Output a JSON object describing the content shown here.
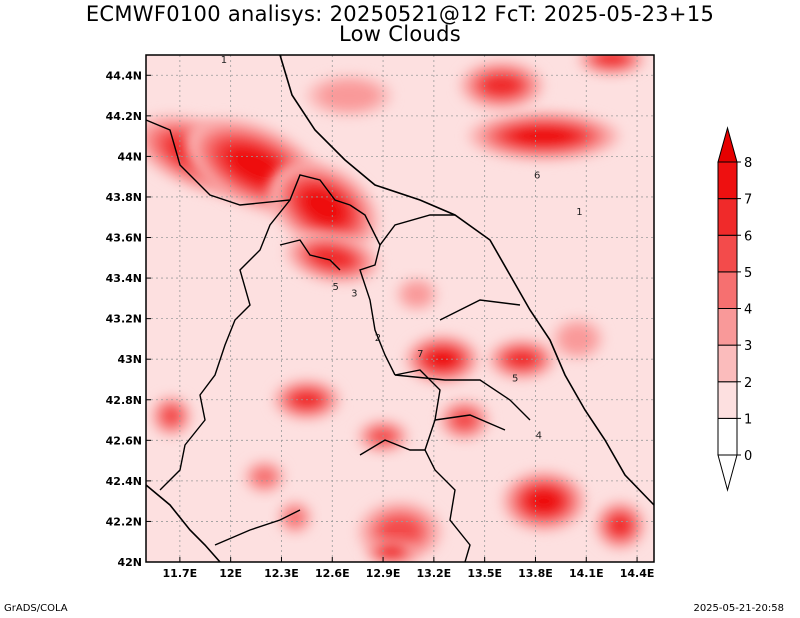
{
  "title_line1": "ECMWF0100 analisys: 20250521@12 FcT: 2025-05-23+15",
  "title_line2": "Low Clouds",
  "footer_left": "GrADS/COLA",
  "footer_right": "2025-05-21-20:58",
  "chart_data": {
    "type": "heatmap",
    "xlim": [
      11.5,
      14.5
    ],
    "ylim": [
      42.0,
      44.5
    ],
    "x_ticks": [
      11.7,
      12.0,
      12.3,
      12.6,
      12.9,
      13.2,
      13.5,
      13.8,
      14.1,
      14.4
    ],
    "x_tick_labels": [
      "11.7E",
      "12E",
      "12.3E",
      "12.6E",
      "12.9E",
      "13.2E",
      "13.5E",
      "13.8E",
      "14.1E",
      "14.4E"
    ],
    "y_ticks": [
      42.0,
      42.2,
      42.4,
      42.6,
      42.8,
      43.0,
      43.2,
      43.4,
      43.6,
      43.8,
      44.0,
      44.2,
      44.4
    ],
    "y_tick_labels": [
      "42N",
      "42.2N",
      "42.4N",
      "42.6N",
      "42.8N",
      "43N",
      "43.2N",
      "43.4N",
      "43.6N",
      "43.8N",
      "44N",
      "44.2N",
      "44.4N"
    ],
    "grid": true,
    "colorbar": {
      "levels": [
        0,
        1,
        2,
        3,
        4,
        5,
        6,
        7,
        8
      ],
      "labels": [
        "0",
        "1",
        "2",
        "3",
        "4",
        "5",
        "6",
        "7",
        "8"
      ],
      "colors": [
        "#ffffff",
        "#fde0e0",
        "#fbbcbc",
        "#f99999",
        "#f67070",
        "#f34b4b",
        "#f02a2a",
        "#ee1010",
        "#e60000"
      ],
      "placement": "right"
    },
    "contour_labels": [
      {
        "text": "1",
        "lon": 11.96,
        "lat": 44.46
      },
      {
        "text": "1",
        "lon": 14.06,
        "lat": 43.71
      },
      {
        "text": "6",
        "lon": 13.81,
        "lat": 43.89
      },
      {
        "text": "5",
        "lon": 12.62,
        "lat": 43.34
      },
      {
        "text": "3",
        "lon": 12.73,
        "lat": 43.31
      },
      {
        "text": "2",
        "lon": 12.87,
        "lat": 43.09
      },
      {
        "text": "7",
        "lon": 13.12,
        "lat": 43.01
      },
      {
        "text": "5",
        "lon": 13.68,
        "lat": 42.89
      },
      {
        "text": "4",
        "lon": 13.82,
        "lat": 42.61
      }
    ],
    "cloud_cells": [
      {
        "lon": 11.85,
        "lat": 44.0,
        "rx": 0.45,
        "ry": 0.17,
        "rot": 20,
        "level": 7
      },
      {
        "lon": 12.15,
        "lat": 43.95,
        "rx": 0.45,
        "ry": 0.2,
        "rot": 25,
        "level": 7
      },
      {
        "lon": 12.55,
        "lat": 43.75,
        "rx": 0.35,
        "ry": 0.2,
        "rot": 30,
        "level": 7
      },
      {
        "lon": 12.6,
        "lat": 43.5,
        "rx": 0.28,
        "ry": 0.12,
        "rot": 10,
        "level": 6
      },
      {
        "lon": 13.85,
        "lat": 44.1,
        "rx": 0.45,
        "ry": 0.12,
        "rot": 0,
        "level": 7
      },
      {
        "lon": 13.6,
        "lat": 44.35,
        "rx": 0.25,
        "ry": 0.12,
        "rot": 0,
        "level": 6
      },
      {
        "lon": 14.25,
        "lat": 44.48,
        "rx": 0.2,
        "ry": 0.08,
        "rot": 0,
        "level": 6
      },
      {
        "lon": 12.7,
        "lat": 44.3,
        "rx": 0.25,
        "ry": 0.1,
        "rot": 0,
        "level": 3
      },
      {
        "lon": 13.25,
        "lat": 43.0,
        "rx": 0.22,
        "ry": 0.12,
        "rot": 0,
        "level": 7
      },
      {
        "lon": 13.72,
        "lat": 43.0,
        "rx": 0.2,
        "ry": 0.1,
        "rot": 0,
        "level": 6
      },
      {
        "lon": 12.45,
        "lat": 42.8,
        "rx": 0.2,
        "ry": 0.1,
        "rot": 0,
        "level": 6
      },
      {
        "lon": 11.65,
        "lat": 42.72,
        "rx": 0.12,
        "ry": 0.1,
        "rot": 0,
        "level": 5
      },
      {
        "lon": 13.38,
        "lat": 42.7,
        "rx": 0.15,
        "ry": 0.1,
        "rot": 0,
        "level": 5
      },
      {
        "lon": 13.85,
        "lat": 42.3,
        "rx": 0.25,
        "ry": 0.15,
        "rot": 0,
        "level": 7
      },
      {
        "lon": 14.3,
        "lat": 42.18,
        "rx": 0.15,
        "ry": 0.12,
        "rot": 0,
        "level": 6
      },
      {
        "lon": 12.9,
        "lat": 42.62,
        "rx": 0.15,
        "ry": 0.08,
        "rot": 0,
        "level": 5
      },
      {
        "lon": 13.0,
        "lat": 42.15,
        "rx": 0.25,
        "ry": 0.15,
        "rot": 0,
        "level": 5
      },
      {
        "lon": 12.95,
        "lat": 42.05,
        "rx": 0.15,
        "ry": 0.06,
        "rot": 0,
        "level": 7
      },
      {
        "lon": 12.38,
        "lat": 42.22,
        "rx": 0.1,
        "ry": 0.08,
        "rot": 0,
        "level": 4
      },
      {
        "lon": 12.2,
        "lat": 42.42,
        "rx": 0.12,
        "ry": 0.08,
        "rot": 0,
        "level": 4
      },
      {
        "lon": 13.1,
        "lat": 43.32,
        "rx": 0.12,
        "ry": 0.08,
        "rot": 0,
        "level": 3
      },
      {
        "lon": 14.05,
        "lat": 43.1,
        "rx": 0.15,
        "ry": 0.1,
        "rot": 0,
        "level": 3
      }
    ]
  }
}
